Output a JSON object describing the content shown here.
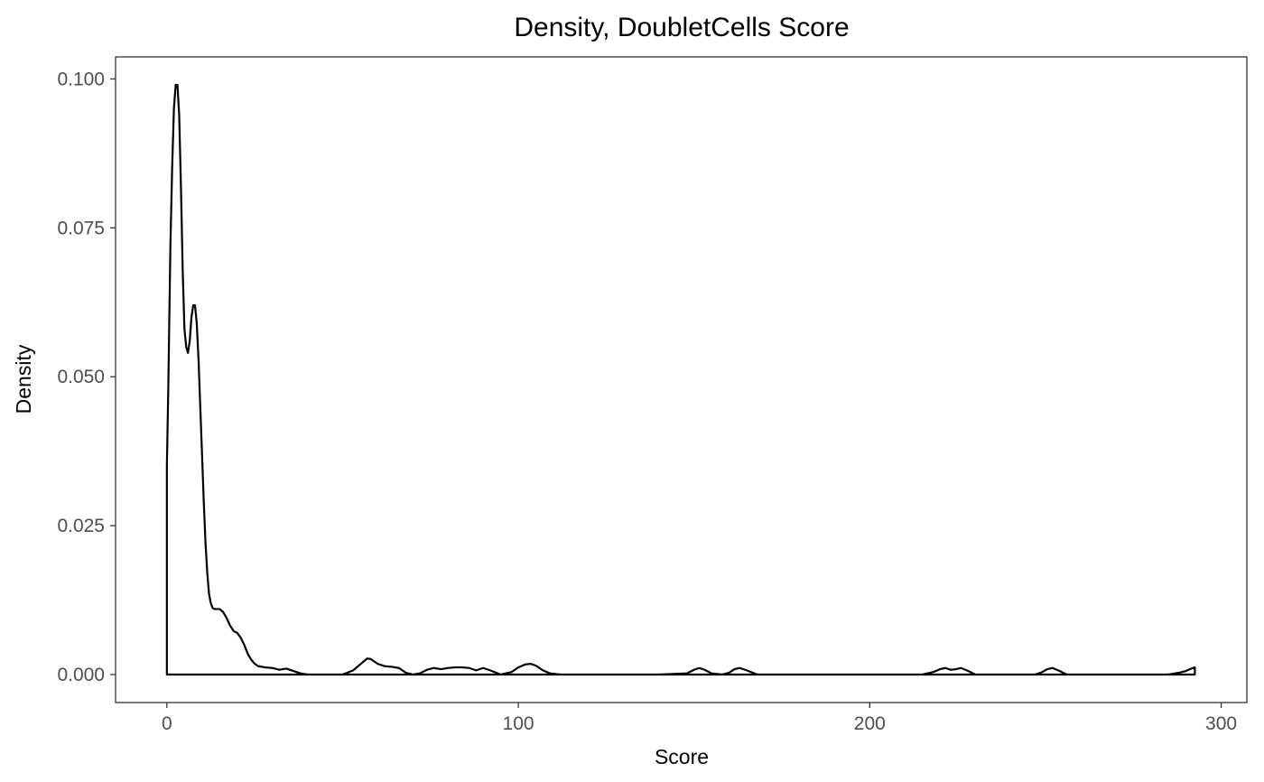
{
  "chart_data": {
    "type": "area",
    "title": "Density, DoubletCells Score",
    "xlabel": "Score",
    "ylabel": "Density",
    "xlim": [
      -14.6,
      307.3
    ],
    "ylim": [
      -0.0047,
      0.1037
    ],
    "x_ticks": [
      0,
      100,
      200,
      300
    ],
    "x_tick_labels": [
      "0",
      "100",
      "200",
      "300"
    ],
    "y_ticks": [
      0,
      0.025,
      0.05,
      0.075,
      0.1
    ],
    "y_tick_labels": [
      "0.000",
      "0.025",
      "0.050",
      "0.075",
      "0.100"
    ],
    "grid": false,
    "legend": "none",
    "line_color": "#000000",
    "fill_color": "none",
    "series": [
      {
        "x": [
          0,
          0.4,
          1,
          1.5,
          2,
          2.5,
          3,
          3.5,
          4,
          4.5,
          5,
          5.5,
          6,
          6.5,
          7,
          7.5,
          8,
          8.5,
          9,
          9.5,
          10,
          10.5,
          11,
          11.5,
          12,
          12.5,
          13,
          13.5,
          14,
          15,
          16,
          17,
          18,
          19,
          20,
          21,
          22,
          23,
          24,
          25,
          26,
          28,
          30,
          32,
          34,
          36,
          38,
          40,
          45,
          50,
          53,
          55,
          57,
          58,
          60,
          62,
          64,
          66,
          68,
          70,
          72,
          74,
          76,
          78,
          80,
          82,
          84,
          86,
          88,
          90,
          92,
          95,
          98,
          100,
          102,
          103.5,
          105,
          107,
          109,
          112,
          120,
          140,
          148,
          150,
          151.5,
          153,
          155,
          158,
          160,
          161.5,
          163,
          165,
          168,
          180,
          200,
          215,
          218,
          220,
          221.5,
          223,
          224.5,
          226,
          228,
          230,
          240,
          247,
          249,
          250.5,
          252,
          254,
          256,
          270,
          285,
          288,
          290,
          291.5,
          292.5,
          292.5
        ],
        "y": [
          0.035,
          0.048,
          0.072,
          0.085,
          0.095,
          0.099,
          0.099,
          0.094,
          0.082,
          0.068,
          0.058,
          0.055,
          0.054,
          0.056,
          0.06,
          0.062,
          0.062,
          0.059,
          0.053,
          0.045,
          0.037,
          0.029,
          0.022,
          0.017,
          0.0135,
          0.012,
          0.0112,
          0.011,
          0.011,
          0.011,
          0.0105,
          0.0095,
          0.0082,
          0.0073,
          0.007,
          0.0062,
          0.005,
          0.0035,
          0.0025,
          0.0018,
          0.0014,
          0.0012,
          0.0011,
          0.0008,
          0.001,
          0.0006,
          0.0002,
          0.0,
          0.0,
          0.0,
          0.0007,
          0.0017,
          0.0027,
          0.0026,
          0.0018,
          0.0014,
          0.0013,
          0.0011,
          0.0003,
          0.0,
          0.0002,
          0.0008,
          0.0011,
          0.0009,
          0.0011,
          0.0012,
          0.0012,
          0.0011,
          0.0007,
          0.0011,
          0.0007,
          0.0,
          0.0004,
          0.0012,
          0.0017,
          0.0018,
          0.0015,
          0.0007,
          0.0002,
          0.0,
          0.0,
          0.0,
          0.0002,
          0.0008,
          0.0011,
          0.0008,
          0.0002,
          0.0,
          0.0003,
          0.0009,
          0.0011,
          0.0007,
          0.0,
          0.0,
          0.0,
          0.0,
          0.0004,
          0.0009,
          0.0011,
          0.0008,
          0.0009,
          0.0011,
          0.0006,
          0.0,
          0.0,
          0.0,
          0.0004,
          0.0009,
          0.0011,
          0.0006,
          0.0,
          0.0,
          0.0,
          0.0003,
          0.0006,
          0.001,
          0.0012,
          0.0
        ]
      }
    ]
  }
}
